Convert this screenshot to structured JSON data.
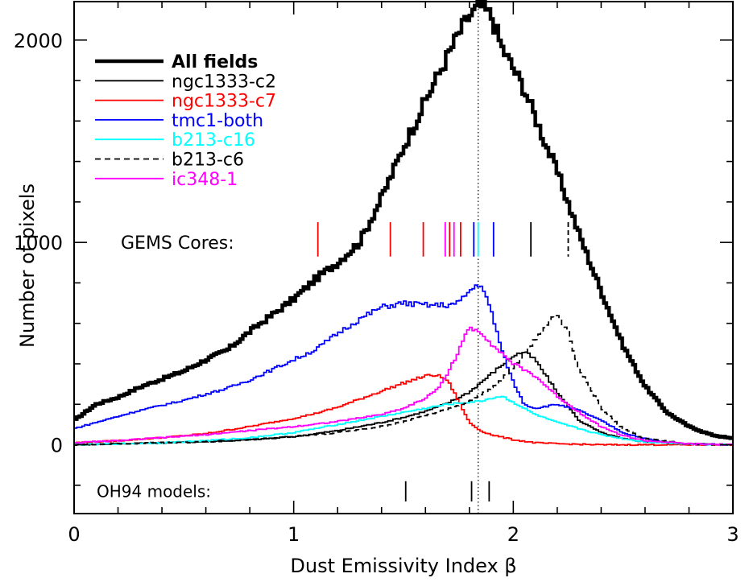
{
  "chart_data": {
    "type": "line",
    "xlabel": "Dust Emissivity Index β",
    "ylabel": "Number of pixels",
    "xlim": [
      0,
      3
    ],
    "ylim": [
      -340,
      2190
    ],
    "x_ticks": [
      0,
      1,
      2,
      3
    ],
    "x_tick_labels": [
      "0",
      "1",
      "2",
      "3"
    ],
    "y_ticks": [
      0,
      1000,
      2000
    ],
    "y_tick_labels": [
      "0",
      "1000",
      "2000"
    ],
    "grid": false,
    "legend_position": "top-left",
    "series": [
      {
        "name": "All fields",
        "color": "#000000",
        "style": "solid-thick",
        "x": [
          0.0,
          0.1,
          0.2,
          0.3,
          0.4,
          0.5,
          0.6,
          0.7,
          0.8,
          0.9,
          1.0,
          1.1,
          1.2,
          1.3,
          1.4,
          1.5,
          1.6,
          1.7,
          1.75,
          1.8,
          1.85,
          1.9,
          1.95,
          2.0,
          2.05,
          2.1,
          2.15,
          2.2,
          2.3,
          2.4,
          2.5,
          2.6,
          2.7,
          2.8,
          2.9,
          3.0
        ],
        "y": [
          120,
          200,
          235,
          285,
          325,
          365,
          420,
          470,
          560,
          640,
          720,
          820,
          900,
          1000,
          1220,
          1470,
          1700,
          1920,
          2030,
          2120,
          2170,
          2120,
          1960,
          1860,
          1760,
          1620,
          1480,
          1350,
          1040,
          760,
          490,
          290,
          160,
          90,
          50,
          30
        ]
      },
      {
        "name": "ngc1333-c2",
        "color": "#000000",
        "style": "solid",
        "x": [
          0.0,
          0.2,
          0.4,
          0.6,
          0.8,
          1.0,
          1.2,
          1.4,
          1.5,
          1.6,
          1.7,
          1.8,
          1.9,
          2.0,
          2.05,
          2.1,
          2.2,
          2.3,
          2.4,
          2.5,
          2.6,
          2.8,
          3.0
        ],
        "y": [
          0,
          5,
          10,
          15,
          25,
          40,
          70,
          110,
          135,
          165,
          205,
          260,
          350,
          440,
          460,
          420,
          260,
          120,
          60,
          30,
          15,
          5,
          0
        ]
      },
      {
        "name": "ngc1333-c7",
        "color": "#ff0000",
        "style": "solid",
        "x": [
          0.0,
          0.2,
          0.4,
          0.6,
          0.8,
          1.0,
          1.1,
          1.2,
          1.3,
          1.4,
          1.5,
          1.6,
          1.65,
          1.7,
          1.75,
          1.8,
          1.85,
          1.9,
          2.0,
          2.1,
          2.2,
          2.4,
          2.6,
          3.0
        ],
        "y": [
          10,
          20,
          35,
          55,
          90,
          130,
          155,
          185,
          225,
          265,
          305,
          340,
          345,
          320,
          220,
          110,
          70,
          50,
          25,
          10,
          5,
          0,
          0,
          0
        ]
      },
      {
        "name": "tmc1-both",
        "color": "#0000ff",
        "style": "solid",
        "x": [
          0.0,
          0.1,
          0.2,
          0.3,
          0.4,
          0.5,
          0.6,
          0.7,
          0.8,
          0.9,
          1.0,
          1.1,
          1.2,
          1.3,
          1.4,
          1.5,
          1.6,
          1.7,
          1.75,
          1.8,
          1.85,
          1.9,
          1.95,
          2.0,
          2.05,
          2.1,
          2.2,
          2.3,
          2.4,
          2.5,
          2.6,
          2.7,
          2.8,
          3.0
        ],
        "y": [
          80,
          110,
          140,
          170,
          195,
          220,
          250,
          280,
          320,
          370,
          420,
          470,
          550,
          620,
          680,
          700,
          690,
          690,
          700,
          760,
          800,
          660,
          460,
          310,
          200,
          180,
          200,
          170,
          120,
          60,
          30,
          10,
          5,
          0
        ]
      },
      {
        "name": "b213-c16",
        "color": "#00ffff",
        "style": "solid",
        "x": [
          0.0,
          0.2,
          0.4,
          0.6,
          0.8,
          1.0,
          1.2,
          1.4,
          1.5,
          1.6,
          1.7,
          1.8,
          1.85,
          1.9,
          1.95,
          2.0,
          2.1,
          2.2,
          2.3,
          2.4,
          2.5,
          2.6,
          2.8,
          3.0
        ],
        "y": [
          0,
          5,
          10,
          20,
          35,
          60,
          100,
          140,
          160,
          180,
          200,
          210,
          215,
          230,
          240,
          210,
          150,
          110,
          80,
          50,
          30,
          15,
          5,
          0
        ]
      },
      {
        "name": "b213-c6",
        "color": "#000000",
        "style": "dashed",
        "x": [
          0.0,
          0.2,
          0.4,
          0.6,
          0.8,
          1.0,
          1.2,
          1.4,
          1.5,
          1.6,
          1.7,
          1.8,
          1.9,
          2.0,
          2.05,
          2.1,
          2.15,
          2.2,
          2.25,
          2.3,
          2.4,
          2.5,
          2.6,
          2.8,
          3.0
        ],
        "y": [
          0,
          5,
          10,
          15,
          25,
          40,
          60,
          90,
          115,
          145,
          175,
          215,
          280,
          380,
          450,
          520,
          600,
          640,
          560,
          380,
          180,
          80,
          30,
          5,
          0
        ]
      },
      {
        "name": "ic348-1",
        "color": "#ff00ff",
        "style": "solid",
        "x": [
          0.0,
          0.2,
          0.4,
          0.6,
          0.8,
          1.0,
          1.2,
          1.4,
          1.5,
          1.6,
          1.65,
          1.7,
          1.75,
          1.8,
          1.85,
          1.9,
          1.95,
          2.0,
          2.1,
          2.2,
          2.3,
          2.4,
          2.5,
          2.6,
          2.8,
          3.0
        ],
        "y": [
          10,
          20,
          35,
          50,
          70,
          90,
          115,
          150,
          180,
          230,
          270,
          350,
          460,
          580,
          560,
          500,
          450,
          400,
          340,
          240,
          160,
          90,
          45,
          20,
          5,
          0
        ]
      }
    ],
    "annotations": [
      {
        "text": "GEMS Cores:"
      },
      {
        "text": "OH94 models:"
      }
    ],
    "gems_core_markers": [
      {
        "x": 1.11,
        "color": "#ff0000"
      },
      {
        "x": 1.44,
        "color": "#ff0000"
      },
      {
        "x": 1.59,
        "color": "#ff0000"
      },
      {
        "x": 1.69,
        "color": "#ff00ff"
      },
      {
        "x": 1.71,
        "color": "#ff0000"
      },
      {
        "x": 1.73,
        "color": "#ff00ff"
      },
      {
        "x": 1.76,
        "color": "#ff0000"
      },
      {
        "x": 1.82,
        "color": "#0000ff"
      },
      {
        "x": 1.84,
        "color": "#00ffff"
      },
      {
        "x": 1.91,
        "color": "#0000ff"
      },
      {
        "x": 2.08,
        "color": "#000000"
      },
      {
        "x": 2.25,
        "color": "#000000",
        "dashed": true
      }
    ],
    "oh94_model_markers": [
      1.51,
      1.81,
      1.89
    ],
    "reference_line_x": 1.84
  }
}
